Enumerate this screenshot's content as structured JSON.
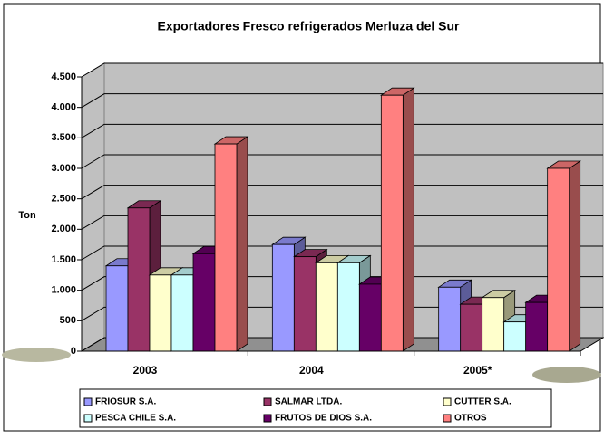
{
  "chart_data": {
    "type": "bar3d",
    "title": "Exportadores Fresco refrigerados Merluza del Sur",
    "y_label": "Ton",
    "categories": [
      "2003",
      "2004",
      "2005*"
    ],
    "series": [
      {
        "name": "FRIOSUR S.A.",
        "color": "#9999ff",
        "values": [
          1400,
          1750,
          1050
        ]
      },
      {
        "name": "SALMAR LTDA.",
        "color": "#993366",
        "values": [
          2350,
          1550,
          770
        ]
      },
      {
        "name": "CUTTER S.A.",
        "color": "#ffffcc",
        "values": [
          1250,
          1450,
          880
        ]
      },
      {
        "name": "PESCA CHILE S.A.",
        "color": "#ccffff",
        "values": [
          1250,
          1450,
          480
        ]
      },
      {
        "name": "FRUTOS DE DIOS S.A.",
        "color": "#660066",
        "values": [
          1600,
          1100,
          800
        ]
      },
      {
        "name": "OTROS",
        "color": "#ff8080",
        "values": [
          3400,
          4200,
          3000
        ]
      }
    ],
    "ylim": [
      0,
      4500
    ],
    "yticks": [
      0,
      500,
      {
        "value": 1000,
        "label": "1.000"
      },
      {
        "value": 1500,
        "label": "1.500"
      },
      {
        "value": 2000,
        "label": "2.000"
      },
      {
        "value": 2500,
        "label": "2.500"
      },
      {
        "value": 3000,
        "label": "3.000"
      },
      {
        "value": 3500,
        "label": "3.500"
      },
      {
        "value": 4000,
        "label": "4.000"
      },
      {
        "value": 4500,
        "label": "4.500"
      }
    ],
    "grid": true,
    "legend": "bottom"
  }
}
